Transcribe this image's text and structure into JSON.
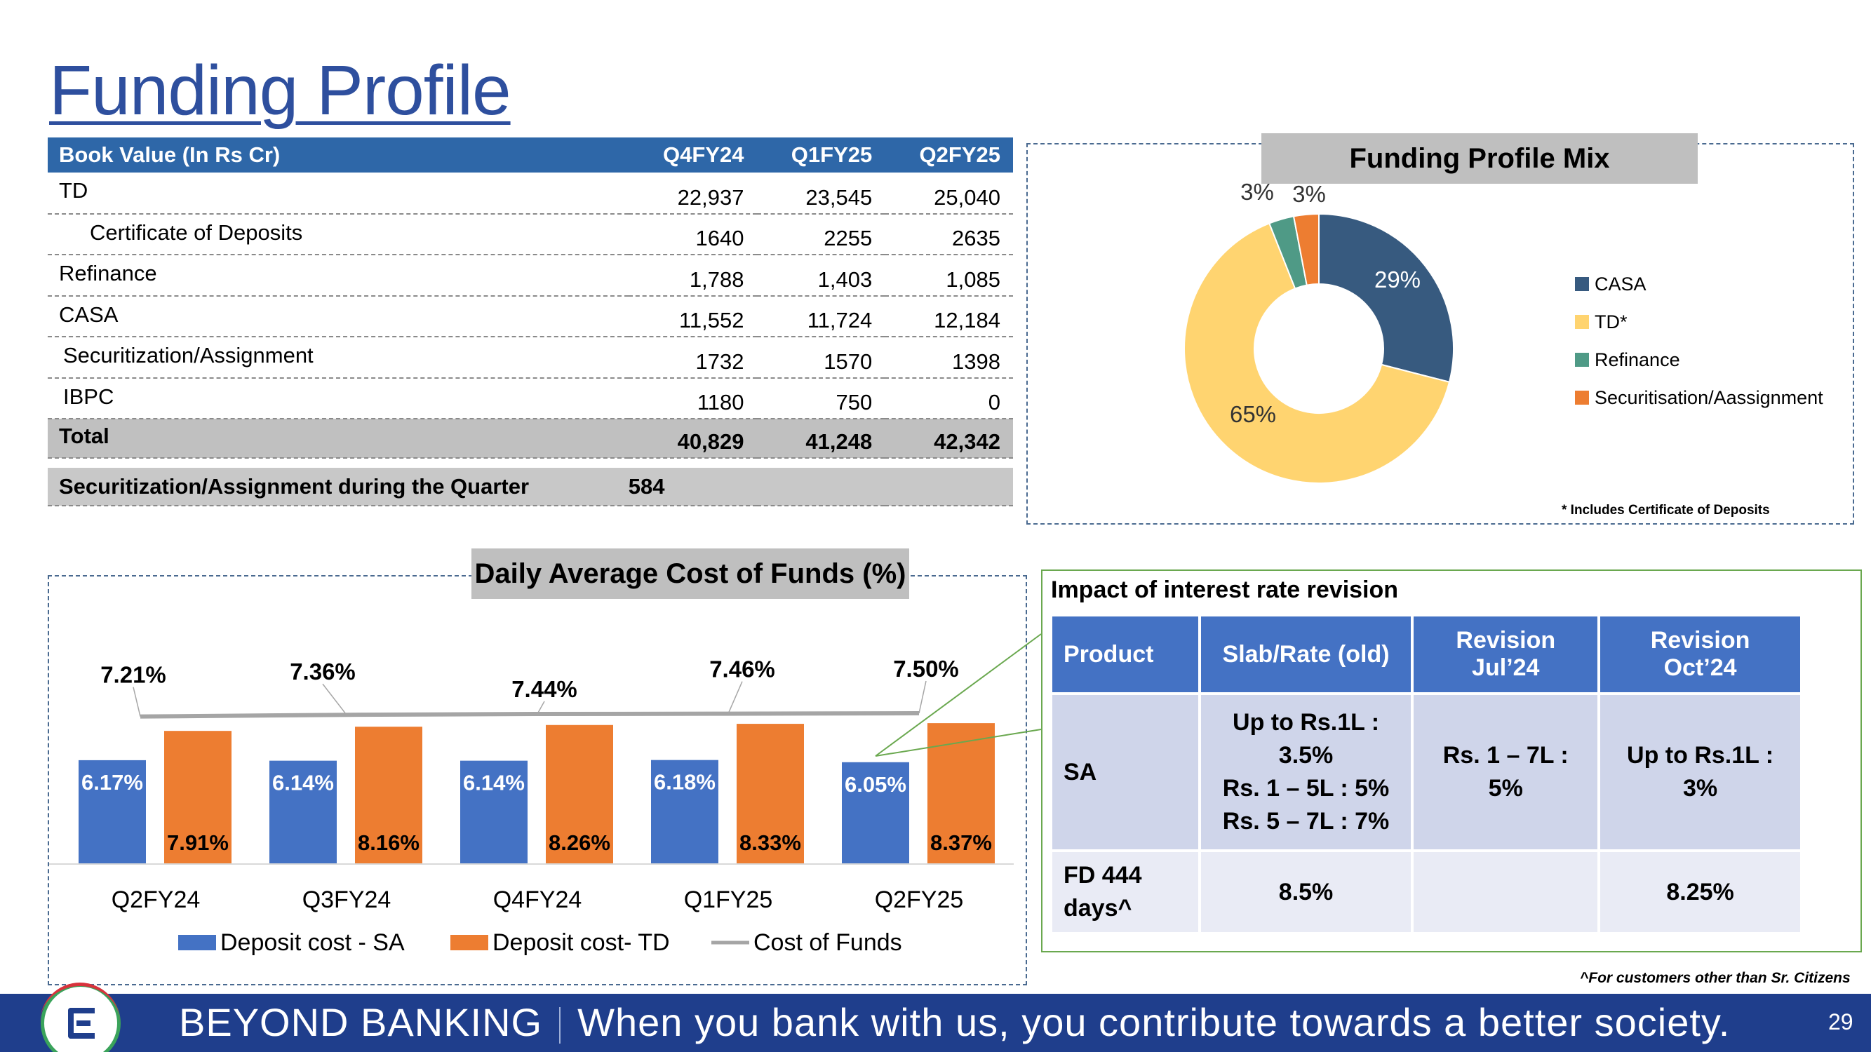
{
  "title": "Funding Profile",
  "book_value": {
    "headers": [
      "Book Value (In Rs Cr)",
      "Q4FY24",
      "Q1FY25",
      "Q2FY25"
    ],
    "rows": [
      {
        "label": "TD",
        "values": [
          "22,937",
          "23,545",
          "25,040"
        ]
      },
      {
        "label": "Certificate of Deposits",
        "values": [
          "1640",
          "2255",
          "2635"
        ]
      },
      {
        "label": "Refinance",
        "values": [
          "1,788",
          "1,403",
          "1,085"
        ]
      },
      {
        "label": "CASA",
        "values": [
          "11,552",
          "11,724",
          "12,184"
        ]
      },
      {
        "label": "Securitization/Assignment",
        "values": [
          "1732",
          "1570",
          "1398"
        ]
      },
      {
        "label": "IBPC",
        "values": [
          "1180",
          "750",
          "0"
        ]
      }
    ],
    "total": {
      "label": "Total",
      "values": [
        "40,829",
        "41,248",
        "42,342"
      ]
    },
    "securitization_quarter": {
      "label": "Securitization/Assignment during the Quarter",
      "value": "584"
    }
  },
  "mix": {
    "title": "Funding Profile Mix",
    "note": "* Includes Certificate of Deposits",
    "legend": [
      "CASA",
      "TD*",
      "Refinance",
      "Securitisation/Aassignment"
    ],
    "colors": [
      "#375a7f",
      "#ffd470",
      "#4f9a86",
      "#ed7d31"
    ],
    "labels": [
      "29%",
      "65%",
      "3%",
      "3%"
    ]
  },
  "cost": {
    "title": "Daily Average Cost of Funds (%)",
    "legend": [
      "Deposit cost -  SA",
      "Deposit cost- TD",
      "Cost of Funds"
    ],
    "colors": {
      "sa": "#4472c4",
      "td": "#ed7d31",
      "cof": "#a5a5a5"
    }
  },
  "impact": {
    "title": "Impact of interest rate revision",
    "headers": [
      "Product",
      "Slab/Rate (old)",
      "Revision Jul’24",
      "Revision Oct’24"
    ],
    "rows": [
      {
        "product": "SA",
        "old": [
          "Up to Rs.1L :",
          "3.5%",
          "Rs. 1 – 5L : 5%",
          "Rs. 5 – 7L : 7%"
        ],
        "jul": [
          "Rs. 1 – 7L :",
          "5%"
        ],
        "oct": [
          "Up to Rs.1L :",
          "3%"
        ]
      },
      {
        "product": [
          "FD 444",
          "days^"
        ],
        "old": [
          "8.5%"
        ],
        "jul": [
          ""
        ],
        "oct": [
          "8.25%"
        ]
      }
    ],
    "footnote": "^For customers other than Sr. Citizens"
  },
  "footer": {
    "brand": "BEYOND BANKING",
    "tagline": "When you bank with us, you contribute towards a better society.",
    "page": "29"
  },
  "chart_data": [
    {
      "type": "pie",
      "title": "Funding Profile Mix",
      "categories": [
        "CASA",
        "TD*",
        "Refinance",
        "Securitisation/Aassignment"
      ],
      "values": [
        29,
        65,
        3,
        3
      ],
      "legend": "right"
    },
    {
      "type": "bar",
      "title": "Daily Average Cost of Funds (%)",
      "categories": [
        "Q2FY24",
        "Q3FY24",
        "Q4FY24",
        "Q1FY25",
        "Q2FY25"
      ],
      "series": [
        {
          "name": "Deposit cost -  SA",
          "type": "bar",
          "values": [
            6.17,
            6.14,
            6.14,
            6.18,
            6.05
          ],
          "labels": [
            "6.17%",
            "6.14%",
            "6.14%",
            "6.18%",
            "6.05%"
          ]
        },
        {
          "name": "Deposit cost- TD",
          "type": "bar",
          "values": [
            7.91,
            8.16,
            8.26,
            8.33,
            8.37
          ],
          "labels": [
            "7.91%",
            "8.16%",
            "8.26%",
            "8.33%",
            "8.37%"
          ]
        },
        {
          "name": "Cost of Funds",
          "type": "line",
          "values": [
            7.21,
            7.36,
            7.44,
            7.46,
            7.5
          ],
          "labels": [
            "7.21%",
            "7.36%",
            "7.44%",
            "7.46%",
            "7.50%"
          ]
        }
      ],
      "legend": "bottom",
      "grid": false
    }
  ]
}
